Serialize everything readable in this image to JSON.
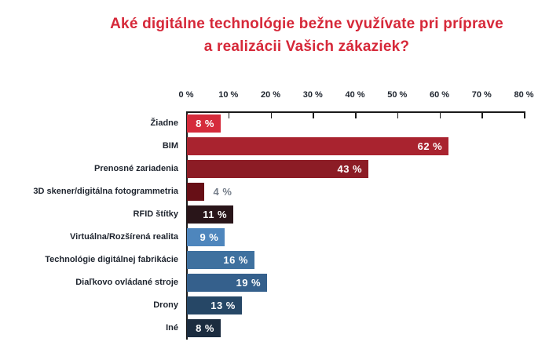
{
  "title_lines": [
    "Aké digitálne technológie bežne využívate pri príprave",
    "a realizácii Vašich zákaziek?"
  ],
  "colors": {
    "background": "#ffffff",
    "title": "#d62839",
    "axis_line": "#1a1a1a",
    "tick_label": "#1e242e",
    "category_label": "#1e242e",
    "value_inside": "#ffffff",
    "value_outside": "#757e8a"
  },
  "chart_data": {
    "type": "bar",
    "orientation": "horizontal",
    "title": "Aké digitálne technológie bežne využívate pri príprave a realizácii Vašich zákaziek?",
    "xlabel": "",
    "ylabel": "",
    "xlim": [
      0,
      80
    ],
    "tick_step": 10,
    "grid": false,
    "legend": "none",
    "x_tick_labels": [
      "0 %",
      "10 %",
      "20 %",
      "30 %",
      "40 %",
      "50 %",
      "60 %",
      "70 %",
      "80 %"
    ],
    "categories": [
      "Žiadne",
      "BIM",
      "Prenosné zariadenia",
      "3D skener/digitálna fotogrammetria",
      "RFID štítky",
      "Virtuálna/Rozšírená realita",
      "Technológie digitálnej fabrikácie",
      "Diaľkovo ovládané stroje",
      "Drony",
      "Iné"
    ],
    "values": [
      8,
      62,
      43,
      4,
      11,
      9,
      16,
      19,
      13,
      8
    ],
    "value_labels": [
      "8 %",
      "62 %",
      "43 %",
      "4 %",
      "11 %",
      "9 %",
      "16 %",
      "19 %",
      "13 %",
      "8 %"
    ],
    "bar_colors": [
      "#d52b3b",
      "#a9232f",
      "#8c1c25",
      "#670f16",
      "#291519",
      "#4e86bd",
      "#3f719f",
      "#35608c",
      "#264766",
      "#1b2c3f"
    ],
    "label_outside_threshold": 8
  }
}
